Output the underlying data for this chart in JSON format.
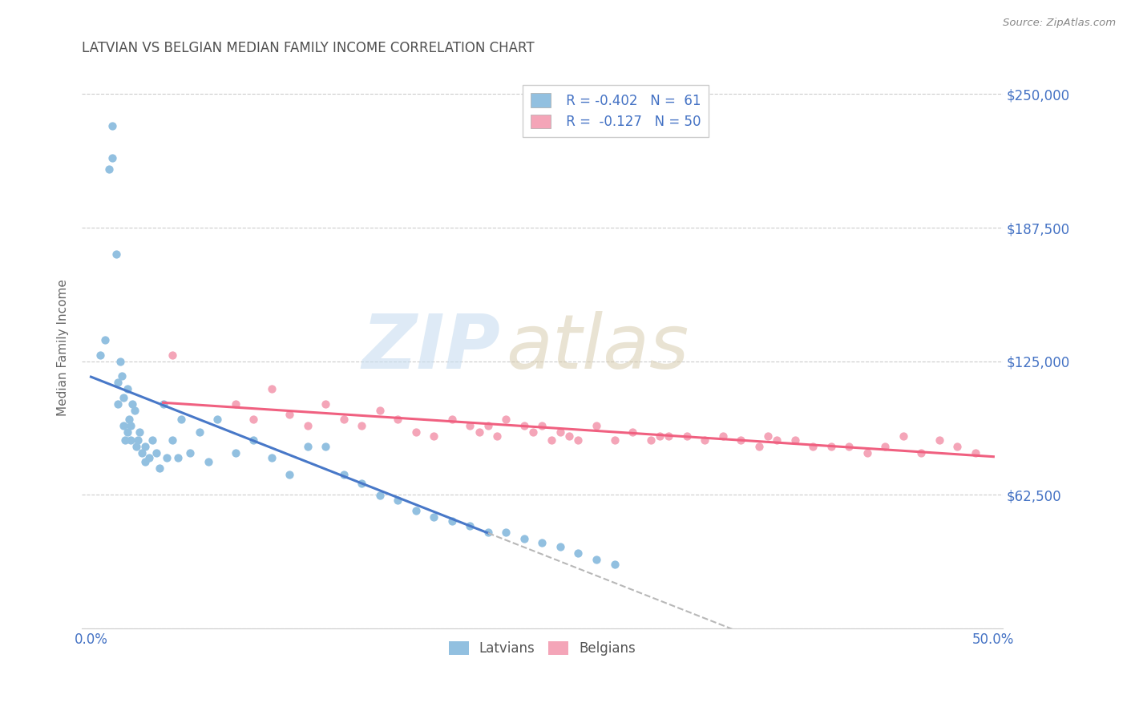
{
  "title": "LATVIAN VS BELGIAN MEDIAN FAMILY INCOME CORRELATION CHART",
  "source": "Source: ZipAtlas.com",
  "ylabel": "Median Family Income",
  "xlim": [
    -0.005,
    0.505
  ],
  "ylim": [
    0,
    262500
  ],
  "yticks": [
    0,
    62500,
    125000,
    187500,
    250000
  ],
  "ytick_labels_right": [
    "",
    "$62,500",
    "$125,000",
    "$187,500",
    "$250,000"
  ],
  "xticks": [
    0.0,
    0.5
  ],
  "xtick_labels": [
    "0.0%",
    "50.0%"
  ],
  "latvian_color": "#92c0e0",
  "belgian_color": "#f4a5b8",
  "latvian_line_color": "#4878c8",
  "belgian_line_color": "#f06080",
  "trend_ext_color": "#b8b8b8",
  "legend_R1": "R = -0.402",
  "legend_N1": "N =  61",
  "legend_R2": "R =  -0.127",
  "legend_N2": "N = 50",
  "title_color": "#505050",
  "tick_label_color": "#4472c4",
  "ylabel_color": "#666666",
  "source_color": "#888888",
  "grid_color": "#cccccc",
  "latvian_x": [
    0.005,
    0.008,
    0.01,
    0.012,
    0.012,
    0.014,
    0.015,
    0.015,
    0.016,
    0.017,
    0.018,
    0.018,
    0.019,
    0.02,
    0.02,
    0.021,
    0.022,
    0.022,
    0.023,
    0.024,
    0.025,
    0.026,
    0.027,
    0.028,
    0.03,
    0.03,
    0.032,
    0.034,
    0.036,
    0.038,
    0.04,
    0.042,
    0.045,
    0.048,
    0.05,
    0.055,
    0.06,
    0.065,
    0.07,
    0.08,
    0.09,
    0.1,
    0.11,
    0.12,
    0.13,
    0.14,
    0.15,
    0.16,
    0.17,
    0.18,
    0.19,
    0.2,
    0.21,
    0.22,
    0.23,
    0.24,
    0.25,
    0.26,
    0.27,
    0.28,
    0.29
  ],
  "latvian_y": [
    128000,
    135000,
    215000,
    220000,
    235000,
    175000,
    105000,
    115000,
    125000,
    118000,
    95000,
    108000,
    88000,
    92000,
    112000,
    98000,
    88000,
    95000,
    105000,
    102000,
    85000,
    88000,
    92000,
    82000,
    78000,
    85000,
    80000,
    88000,
    82000,
    75000,
    105000,
    80000,
    88000,
    80000,
    98000,
    82000,
    92000,
    78000,
    98000,
    82000,
    88000,
    80000,
    72000,
    85000,
    85000,
    72000,
    68000,
    62000,
    60000,
    55000,
    52000,
    50000,
    48000,
    45000,
    45000,
    42000,
    40000,
    38000,
    35000,
    32000,
    30000
  ],
  "belgian_x": [
    0.045,
    0.08,
    0.09,
    0.1,
    0.11,
    0.12,
    0.13,
    0.14,
    0.15,
    0.16,
    0.17,
    0.18,
    0.19,
    0.2,
    0.21,
    0.215,
    0.22,
    0.225,
    0.23,
    0.24,
    0.245,
    0.25,
    0.255,
    0.26,
    0.265,
    0.27,
    0.28,
    0.29,
    0.3,
    0.31,
    0.315,
    0.32,
    0.33,
    0.34,
    0.35,
    0.36,
    0.37,
    0.375,
    0.38,
    0.39,
    0.4,
    0.41,
    0.42,
    0.43,
    0.44,
    0.45,
    0.46,
    0.47,
    0.48,
    0.49
  ],
  "belgian_y": [
    128000,
    105000,
    98000,
    112000,
    100000,
    95000,
    105000,
    98000,
    95000,
    102000,
    98000,
    92000,
    90000,
    98000,
    95000,
    92000,
    95000,
    90000,
    98000,
    95000,
    92000,
    95000,
    88000,
    92000,
    90000,
    88000,
    95000,
    88000,
    92000,
    88000,
    90000,
    90000,
    90000,
    88000,
    90000,
    88000,
    85000,
    90000,
    88000,
    88000,
    85000,
    85000,
    85000,
    82000,
    85000,
    90000,
    82000,
    88000,
    85000,
    82000
  ]
}
